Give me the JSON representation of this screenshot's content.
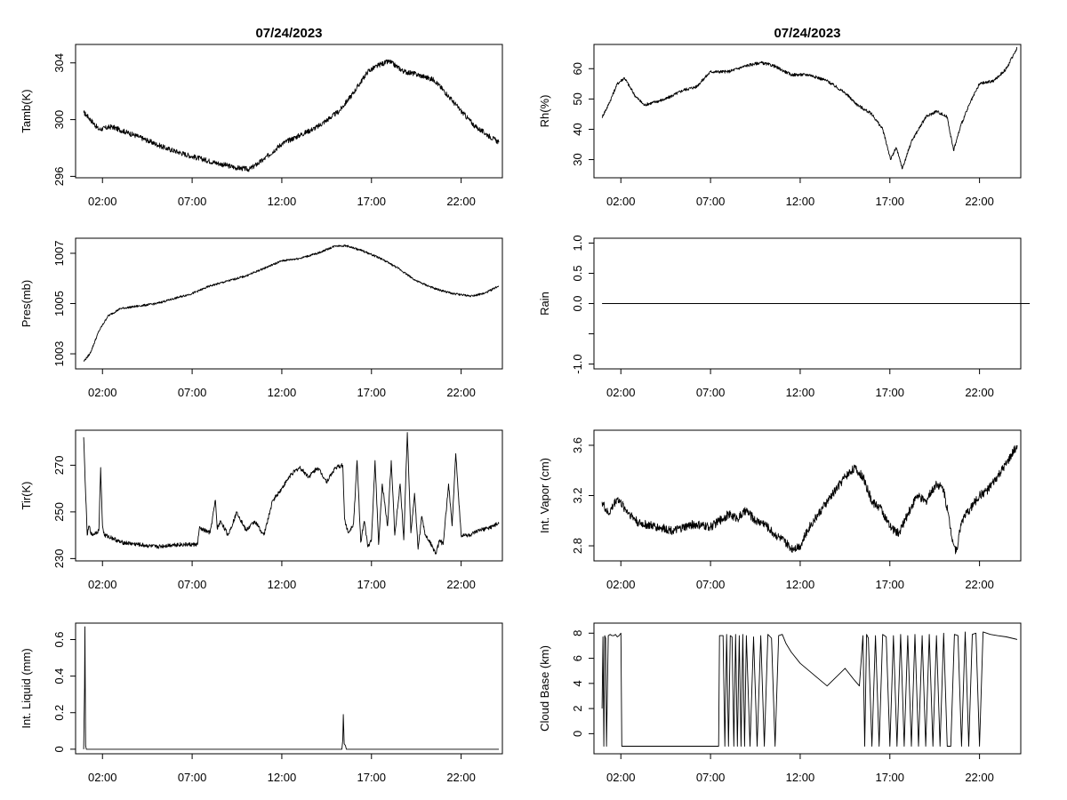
{
  "figure": {
    "date_left": "07/24/2023",
    "date_right": "07/24/2023"
  },
  "chart_data": [
    {
      "type": "line",
      "ylabel": "Tamb(K)",
      "x_ticks": [
        "02:00",
        "07:00",
        "12:00",
        "17:00",
        "22:00"
      ],
      "x_tick_hours": [
        2,
        7,
        12,
        17,
        22
      ],
      "x_range_hours": [
        0.5,
        24.3
      ],
      "ylim": [
        295.9,
        305.3
      ],
      "y_ticks": [
        296,
        300,
        304
      ],
      "noise": 0.18,
      "series": [
        {
          "name": "Tamb",
          "x": [
            0.95,
            1.2,
            1.8,
            2.5,
            4,
            5.5,
            7,
            8.5,
            9.5,
            10.2,
            11,
            12,
            13,
            14,
            15.2,
            16,
            16.8,
            17.5,
            18,
            18.8,
            19.5,
            20.5,
            21.2,
            22,
            22.8,
            23.5,
            24.1
          ],
          "y": [
            300.5,
            300.2,
            299.3,
            299.5,
            298.8,
            298,
            297.4,
            296.9,
            296.6,
            296.5,
            297.2,
            298.3,
            298.9,
            299.5,
            300.6,
            301.9,
            303.4,
            303.9,
            304.1,
            303.4,
            303.2,
            302.8,
            301.8,
            300.6,
            299.5,
            298.9,
            298.4
          ]
        }
      ]
    },
    {
      "type": "line",
      "ylabel": "Rh(%)",
      "x_ticks": [
        "02:00",
        "07:00",
        "12:00",
        "17:00",
        "22:00"
      ],
      "x_tick_hours": [
        2,
        7,
        12,
        17,
        22
      ],
      "x_range_hours": [
        0.5,
        24.3
      ],
      "ylim": [
        24,
        68
      ],
      "y_ticks": [
        30,
        40,
        50,
        60
      ],
      "noise": 0.5,
      "series": [
        {
          "name": "Rh",
          "x": [
            0.95,
            1.3,
            1.8,
            2.2,
            2.8,
            3.3,
            4.5,
            5.5,
            6.2,
            7,
            8,
            9,
            9.8,
            10.5,
            11.5,
            12.5,
            13.5,
            14.5,
            15.2,
            16,
            16.6,
            17.05,
            17.35,
            17.7,
            18.2,
            19,
            19.6,
            20.2,
            20.55,
            21,
            21.5,
            22,
            22.8,
            23.5,
            24.1
          ],
          "y": [
            44,
            48,
            55,
            57,
            51,
            48,
            50,
            53,
            54,
            59,
            59,
            61,
            62,
            61,
            58,
            58,
            56,
            52,
            48,
            45,
            40,
            30,
            34,
            27,
            36,
            44,
            46,
            44,
            33,
            42,
            49,
            55,
            56,
            60,
            67
          ]
        }
      ]
    },
    {
      "type": "line",
      "ylabel": "Pres(mb)",
      "x_ticks": [
        "02:00",
        "07:00",
        "12:00",
        "17:00",
        "22:00"
      ],
      "x_tick_hours": [
        2,
        7,
        12,
        17,
        22
      ],
      "x_range_hours": [
        0.5,
        24.3
      ],
      "ylim": [
        1002.4,
        1007.6
      ],
      "y_ticks": [
        1003,
        1005,
        1007
      ],
      "noise": 0.04,
      "series": [
        {
          "name": "Pres",
          "x": [
            0.95,
            1.3,
            1.8,
            2.3,
            3,
            4,
            5,
            6,
            7,
            8,
            9,
            10,
            11,
            12,
            13,
            14,
            15,
            15.6,
            16.5,
            17.5,
            18.5,
            19.5,
            20.5,
            21.5,
            22.5,
            23.3,
            24.1
          ],
          "y": [
            1002.7,
            1003,
            1003.9,
            1004.5,
            1004.8,
            1004.9,
            1005,
            1005.2,
            1005.4,
            1005.7,
            1005.9,
            1006.1,
            1006.4,
            1006.7,
            1006.8,
            1007,
            1007.3,
            1007.3,
            1007.1,
            1006.8,
            1006.4,
            1005.9,
            1005.6,
            1005.4,
            1005.3,
            1005.4,
            1005.7
          ]
        }
      ]
    },
    {
      "type": "line",
      "ylabel": "Rain",
      "x_ticks": [
        "02:00",
        "07:00",
        "12:00",
        "17:00",
        "22:00"
      ],
      "x_tick_hours": [
        2,
        7,
        12,
        17,
        22
      ],
      "x_range_hours": [
        0.5,
        24.3
      ],
      "ylim": [
        -1.08,
        1.08
      ],
      "y_ticks": [
        -1.0,
        -0.5,
        0.0,
        0.5,
        1.0
      ],
      "y_tick_labels": [
        "-1.0",
        "",
        "0.0",
        "0.5",
        "1.0"
      ],
      "noise": 0,
      "series": [
        {
          "name": "Rain",
          "x": [
            0.95,
            24.8
          ],
          "y": [
            0,
            0
          ]
        }
      ]
    },
    {
      "type": "line",
      "ylabel": "Tir(K)",
      "x_ticks": [
        "02:00",
        "07:00",
        "12:00",
        "17:00",
        "22:00"
      ],
      "x_tick_hours": [
        2,
        7,
        12,
        17,
        22
      ],
      "x_range_hours": [
        0.5,
        24.3
      ],
      "ylim": [
        229,
        285
      ],
      "y_ticks": [
        230,
        250,
        270
      ],
      "noise": 0.9,
      "series": [
        {
          "name": "Tir",
          "x": [
            0.95,
            1.05,
            1.15,
            1.25,
            1.4,
            1.8,
            1.9,
            2.0,
            2.1,
            2.5,
            3,
            4,
            5,
            6,
            7.3,
            7.4,
            8,
            8.3,
            8.4,
            8.6,
            9,
            9.5,
            10,
            10.5,
            11,
            11.5,
            12,
            12.5,
            13,
            13.5,
            14,
            14.5,
            15,
            15.4,
            15.5,
            15.7,
            16,
            16.2,
            16.4,
            16.6,
            16.8,
            17,
            17.2,
            17.4,
            17.6,
            17.9,
            18.1,
            18.3,
            18.6,
            18.8,
            19,
            19.2,
            19.4,
            19.6,
            19.8,
            20,
            20.2,
            20.4,
            20.6,
            20.8,
            21,
            21.3,
            21.5,
            21.7,
            22,
            22.5,
            23,
            23.5,
            24.1
          ],
          "y": [
            282,
            260,
            240,
            244,
            240,
            242,
            269,
            244,
            240,
            239,
            237,
            236,
            235,
            236,
            236,
            243,
            241,
            255,
            243,
            246,
            240,
            250,
            242,
            246,
            240,
            255,
            260,
            266,
            269,
            265,
            269,
            263,
            269,
            270,
            247,
            241,
            245,
            272,
            237,
            246,
            235,
            238,
            272,
            236,
            262,
            244,
            272,
            240,
            262,
            238,
            284,
            241,
            258,
            234,
            248,
            240,
            238,
            235,
            232,
            238,
            236,
            262,
            244,
            275,
            240,
            240,
            242,
            243,
            245
          ]
        }
      ]
    },
    {
      "type": "line",
      "ylabel": "Int. Vapor (cm)",
      "x_ticks": [
        "02:00",
        "07:00",
        "12:00",
        "17:00",
        "22:00"
      ],
      "x_tick_hours": [
        2,
        7,
        12,
        17,
        22
      ],
      "x_range_hours": [
        0.5,
        24.3
      ],
      "ylim": [
        2.68,
        3.72
      ],
      "y_ticks": [
        2.8,
        3.2,
        3.6
      ],
      "noise": 0.035,
      "series": [
        {
          "name": "IntVapor",
          "x": [
            0.95,
            1.3,
            1.8,
            2.2,
            3,
            4,
            5,
            6,
            7,
            7.5,
            8,
            8.5,
            9,
            9.5,
            10,
            10.5,
            11,
            11.5,
            12,
            12.5,
            13,
            13.5,
            14,
            14.5,
            15,
            15.5,
            16,
            16.5,
            17,
            17.5,
            18,
            18.5,
            19,
            19.6,
            20,
            20.5,
            20.7,
            21,
            21.5,
            22,
            22.5,
            23,
            23.5,
            24.1
          ],
          "y": [
            3.15,
            3.05,
            3.18,
            3.1,
            2.98,
            2.95,
            2.92,
            2.97,
            2.95,
            3.0,
            3.05,
            3.02,
            3.08,
            3.0,
            2.98,
            2.9,
            2.85,
            2.78,
            2.8,
            2.95,
            3.05,
            3.15,
            3.25,
            3.35,
            3.42,
            3.35,
            3.15,
            3.1,
            2.95,
            2.9,
            3.05,
            3.2,
            3.15,
            3.3,
            3.25,
            2.85,
            2.75,
            3.0,
            3.1,
            3.2,
            3.25,
            3.35,
            3.45,
            3.6
          ]
        }
      ]
    },
    {
      "type": "line",
      "ylabel": "Int. Liquid (mm)",
      "x_ticks": [
        "02:00",
        "07:00",
        "12:00",
        "17:00",
        "22:00"
      ],
      "x_tick_hours": [
        2,
        7,
        12,
        17,
        22
      ],
      "x_range_hours": [
        0.5,
        24.3
      ],
      "ylim": [
        -0.025,
        0.69
      ],
      "y_ticks": [
        0.0,
        0.2,
        0.4,
        0.6
      ],
      "noise": 0,
      "series": [
        {
          "name": "IntLiquid",
          "x": [
            0.95,
            1.0,
            1.02,
            1.06,
            1.1,
            15.35,
            15.4,
            15.43,
            15.48,
            15.55,
            15.6,
            24.1
          ],
          "y": [
            0,
            0.34,
            0.67,
            0.02,
            0,
            0,
            0.05,
            0.19,
            0.03,
            0.02,
            0,
            0
          ]
        }
      ]
    },
    {
      "type": "line",
      "ylabel": "Cloud Base (km)",
      "x_ticks": [
        "02:00",
        "07:00",
        "12:00",
        "17:00",
        "22:00"
      ],
      "x_tick_hours": [
        2,
        7,
        12,
        17,
        22
      ],
      "x_range_hours": [
        0.5,
        24.3
      ],
      "ylim": [
        -1.6,
        8.8
      ],
      "y_ticks": [
        0,
        2,
        4,
        6,
        8
      ],
      "noise": 0,
      "series": [
        {
          "name": "CloudBase",
          "x": [
            0.95,
            1.0,
            1.05,
            1.1,
            1.15,
            1.2,
            1.3,
            1.4,
            1.5,
            1.6,
            1.7,
            1.8,
            1.9,
            2.0,
            2.05,
            3,
            5,
            7.45,
            7.5,
            7.7,
            7.8,
            7.9,
            8.0,
            8.1,
            8.2,
            8.3,
            8.4,
            8.5,
            8.6,
            8.7,
            8.8,
            8.9,
            9.0,
            9.2,
            9.4,
            9.6,
            9.8,
            10.0,
            10.2,
            10.4,
            10.6,
            10.8,
            11.0,
            11.2,
            11.5,
            12.0,
            12.5,
            13.0,
            13.5,
            14.0,
            14.5,
            15.0,
            15.3,
            15.5,
            15.6,
            15.7,
            15.8,
            16.0,
            16.2,
            16.4,
            16.6,
            16.8,
            17.0,
            17.2,
            17.4,
            17.6,
            17.8,
            18.0,
            18.2,
            18.4,
            18.6,
            18.8,
            19.0,
            19.2,
            19.4,
            19.6,
            19.8,
            20.0,
            20.2,
            20.4,
            20.6,
            20.8,
            21.0,
            21.2,
            21.4,
            21.6,
            21.8,
            22.0,
            22.2,
            22.4,
            22.6,
            23.0,
            23.5,
            24.1
          ],
          "y": [
            2.0,
            7.7,
            -1.0,
            7.8,
            7.6,
            -1.0,
            7.8,
            7.9,
            7.8,
            7.8,
            7.9,
            7.7,
            7.8,
            8.0,
            -1.0,
            -1.0,
            -1.0,
            -1.0,
            7.8,
            7.8,
            -1.0,
            7.9,
            -1.0,
            7.8,
            7.7,
            -1.0,
            7.9,
            -1.0,
            7.8,
            -1.0,
            7.9,
            -1.0,
            7.8,
            -1.0,
            7.7,
            -1.0,
            7.8,
            -1.0,
            7.9,
            7.6,
            -1.0,
            7.8,
            7.9,
            7.2,
            6.5,
            5.6,
            5.0,
            4.4,
            3.8,
            4.5,
            5.2,
            4.3,
            3.8,
            7.8,
            -1.0,
            7.9,
            7.6,
            -1.0,
            7.8,
            -1.0,
            7.9,
            7.7,
            -1.0,
            7.8,
            -1.0,
            7.9,
            -1.0,
            7.8,
            -1.0,
            7.9,
            -1.0,
            7.8,
            -1.0,
            7.9,
            -1.0,
            7.8,
            -1.0,
            8.0,
            -1.0,
            -1.0,
            7.9,
            7.8,
            -1.0,
            8.1,
            -1.0,
            7.9,
            8.0,
            -1.0,
            8.1,
            8.0,
            7.9,
            7.8,
            7.7,
            7.5
          ]
        }
      ]
    }
  ]
}
